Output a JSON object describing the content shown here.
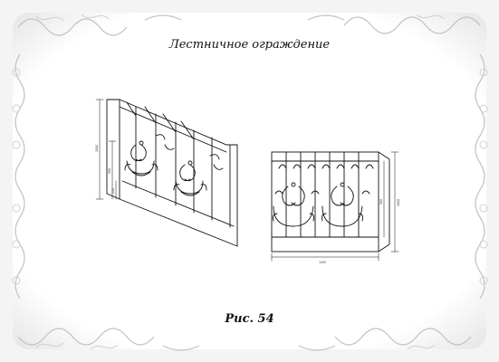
{
  "title": "Лестничное ограждение",
  "caption": "Рис. 54",
  "left_view": {
    "dim_height_total": "1000",
    "dim_height_mid": "900",
    "dim_height_small": "250"
  },
  "right_view": {
    "dim_width": "1000",
    "dim_height_right": "1000",
    "dim_height_inner": "900"
  },
  "colors": {
    "ink": "#111111",
    "ornament": "#c9c9c9",
    "background": "#ffffff"
  },
  "icons": [
    "floral-border-ornament",
    "scroll-ornament"
  ]
}
